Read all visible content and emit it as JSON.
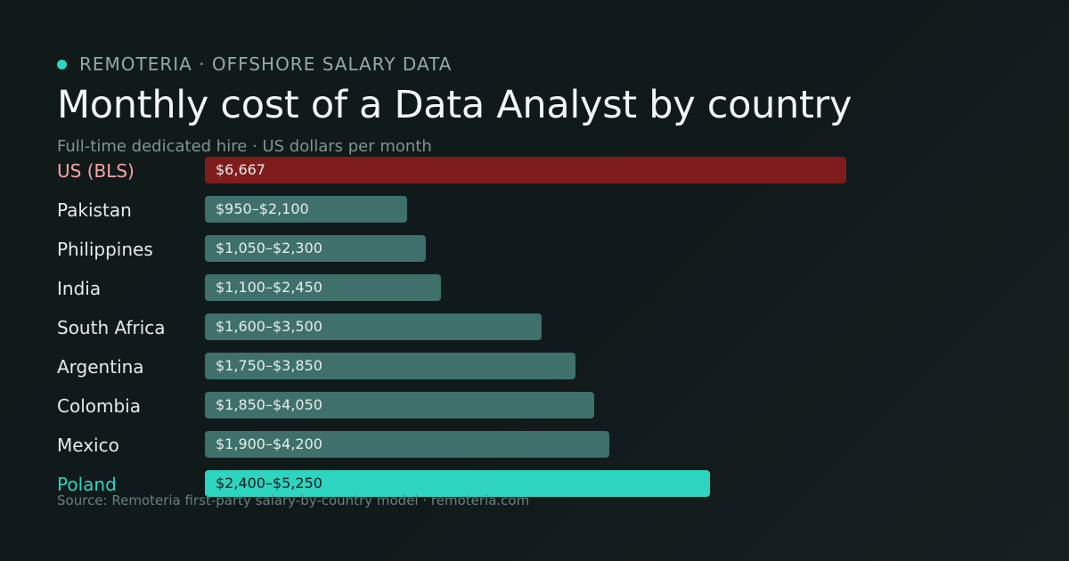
{
  "header": {
    "brand": "REMOTERIA · OFFSHORE SALARY DATA",
    "title": "Monthly cost of a Data Analyst by country",
    "subtitle": "Full-time dedicated hire · US dollars per month"
  },
  "footer": {
    "source": "Source: Remoteria first-party salary-by-country model · remoteria.com"
  },
  "colors": {
    "accent": "#2dd4bf",
    "us_bar": "#7f1d1d",
    "us_label": "#fca5a5",
    "default_bar": "#3f706b",
    "default_label": "#e6ecea",
    "poland_bar": "#2dd4bf",
    "poland_label": "#2dd4bf",
    "poland_bar_text": "#0f1a19"
  },
  "chart_data": {
    "type": "bar",
    "orientation": "horizontal",
    "title": "Monthly cost of a Data Analyst by country",
    "subtitle": "Full-time dedicated hire · US dollars per month",
    "categories": [
      "US (BLS)",
      "Pakistan",
      "Philippines",
      "India",
      "South Africa",
      "Argentina",
      "Colombia",
      "Mexico",
      "Poland"
    ],
    "series": [
      {
        "values": [
          6667,
          2100,
          2300,
          2450,
          3500,
          3850,
          4050,
          4200,
          5250
        ]
      }
    ],
    "range_low": [
      null,
      950,
      1050,
      1100,
      1600,
      1750,
      1850,
      1900,
      2400
    ],
    "data_labels": [
      "$6,667",
      "$950–$2,100",
      "$1,050–$2,300",
      "$1,100–$2,450",
      "$1,600–$3,500",
      "$1,750–$3,850",
      "$1,850–$4,050",
      "$1,900–$4,200",
      "$2,400–$5,250"
    ],
    "highlight": {
      "US (BLS)": "us",
      "Poland": "poland"
    },
    "xlim": [
      0,
      6667
    ],
    "grid": false,
    "legend": "none"
  }
}
